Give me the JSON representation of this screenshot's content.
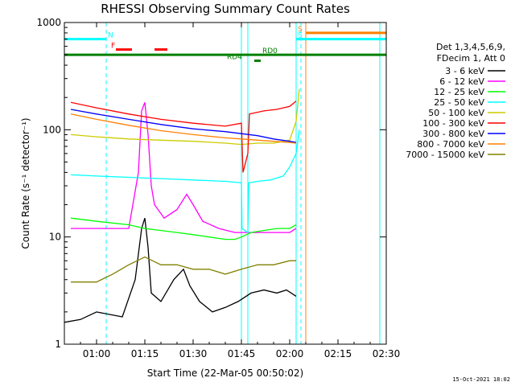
{
  "chart_data": {
    "type": "line",
    "title": "RHESSI Observing Summary Count Rates",
    "xlabel": "Start Time (22-Mar-05 00:50:02)",
    "ylabel": "Count Rate (s⁻¹ detector⁻¹)",
    "yscale": "log",
    "ylim": [
      1,
      1000
    ],
    "xlim_minutes_after_0050": [
      0,
      100
    ],
    "x_ticks": [
      "01:00",
      "01:15",
      "01:30",
      "01:45",
      "02:00",
      "02:15",
      "02:30"
    ],
    "x_tick_minutes": [
      10,
      25,
      40,
      55,
      70,
      85,
      100
    ],
    "y_ticks": [
      "1",
      "10",
      "100",
      "1000"
    ],
    "y_tick_values": [
      1,
      10,
      100,
      1000
    ],
    "legend_header": [
      "Det 1,3,4,5,6,9,",
      "FDecim 1, Att 0"
    ],
    "legend_position": "right",
    "series": [
      {
        "name": "3 - 6 keV",
        "color": "#000000",
        "points": [
          [
            0,
            1.6
          ],
          [
            5,
            1.7
          ],
          [
            10,
            2.0
          ],
          [
            18,
            1.8
          ],
          [
            22,
            4.0
          ],
          [
            24,
            12
          ],
          [
            25,
            15
          ],
          [
            26,
            8
          ],
          [
            27,
            3.0
          ],
          [
            30,
            2.5
          ],
          [
            34,
            4.0
          ],
          [
            37,
            5.0
          ],
          [
            39,
            3.5
          ],
          [
            42,
            2.5
          ],
          [
            46,
            2.0
          ],
          [
            50,
            2.2
          ],
          [
            54,
            2.5
          ],
          [
            58,
            3.0
          ],
          [
            62,
            3.2
          ],
          [
            66,
            3.0
          ],
          [
            69,
            3.2
          ],
          [
            72,
            2.8
          ]
        ]
      },
      {
        "name": "6 - 12 keV",
        "color": "#ff00ff",
        "points": [
          [
            2,
            12
          ],
          [
            10,
            12
          ],
          [
            20,
            12
          ],
          [
            23,
            40
          ],
          [
            24,
            150
          ],
          [
            25,
            180
          ],
          [
            26,
            90
          ],
          [
            27,
            30
          ],
          [
            28,
            20
          ],
          [
            31,
            15
          ],
          [
            35,
            18
          ],
          [
            38,
            25
          ],
          [
            40,
            20
          ],
          [
            43,
            14
          ],
          [
            48,
            12
          ],
          [
            53,
            11
          ],
          [
            56,
            11
          ],
          [
            58,
            11
          ],
          [
            62,
            11
          ],
          [
            66,
            11
          ],
          [
            70,
            11
          ],
          [
            72,
            12
          ]
        ]
      },
      {
        "name": "12 - 25 keV",
        "color": "#00ff00",
        "points": [
          [
            2,
            15
          ],
          [
            10,
            14
          ],
          [
            20,
            13
          ],
          [
            25,
            12
          ],
          [
            30,
            11.5
          ],
          [
            35,
            11
          ],
          [
            40,
            10.5
          ],
          [
            45,
            10
          ],
          [
            50,
            9.5
          ],
          [
            53,
            9.5
          ],
          [
            55,
            10
          ],
          [
            58,
            11
          ],
          [
            62,
            11.5
          ],
          [
            66,
            12
          ],
          [
            70,
            12
          ],
          [
            72,
            13
          ]
        ]
      },
      {
        "name": "25 - 50 keV",
        "color": "#00ffff",
        "points": [
          [
            2,
            38
          ],
          [
            10,
            37
          ],
          [
            20,
            36
          ],
          [
            30,
            35
          ],
          [
            40,
            34
          ],
          [
            50,
            33
          ],
          [
            55,
            32
          ],
          [
            55.2,
            12
          ],
          [
            57,
            11
          ],
          [
            57.3,
            32
          ],
          [
            60,
            33
          ],
          [
            64,
            34
          ],
          [
            68,
            37
          ],
          [
            70,
            45
          ],
          [
            72,
            60
          ],
          [
            73,
            100
          ]
        ]
      },
      {
        "name": "50 - 100 keV",
        "color": "#cccc00",
        "points": [
          [
            2,
            90
          ],
          [
            10,
            86
          ],
          [
            20,
            82
          ],
          [
            30,
            80
          ],
          [
            40,
            78
          ],
          [
            50,
            75
          ],
          [
            55,
            73
          ],
          [
            60,
            75
          ],
          [
            65,
            75
          ],
          [
            70,
            80
          ],
          [
            72,
            120
          ],
          [
            73,
            240
          ]
        ]
      },
      {
        "name": "100 - 300 keV",
        "color": "#ff0000",
        "points": [
          [
            2,
            180
          ],
          [
            10,
            160
          ],
          [
            20,
            140
          ],
          [
            30,
            125
          ],
          [
            40,
            115
          ],
          [
            50,
            108
          ],
          [
            55,
            115
          ],
          [
            55.5,
            40
          ],
          [
            57,
            60
          ],
          [
            57.5,
            140
          ],
          [
            62,
            150
          ],
          [
            66,
            155
          ],
          [
            70,
            165
          ],
          [
            72,
            185
          ]
        ]
      },
      {
        "name": "300 - 800 keV",
        "color": "#0000ff",
        "points": [
          [
            2,
            155
          ],
          [
            10,
            140
          ],
          [
            20,
            125
          ],
          [
            30,
            112
          ],
          [
            40,
            102
          ],
          [
            50,
            96
          ],
          [
            55,
            92
          ],
          [
            60,
            88
          ],
          [
            65,
            82
          ],
          [
            70,
            78
          ],
          [
            72,
            76
          ]
        ]
      },
      {
        "name": "800 - 7000 keV",
        "color": "#ff8000",
        "points": [
          [
            2,
            140
          ],
          [
            10,
            125
          ],
          [
            20,
            110
          ],
          [
            30,
            98
          ],
          [
            40,
            90
          ],
          [
            50,
            84
          ],
          [
            55,
            82
          ],
          [
            60,
            80
          ],
          [
            65,
            78
          ],
          [
            70,
            76
          ],
          [
            72,
            75
          ]
        ]
      },
      {
        "name": "7000 - 15000 keV",
        "color": "#808000",
        "points": [
          [
            2,
            3.8
          ],
          [
            10,
            3.8
          ],
          [
            15,
            4.5
          ],
          [
            20,
            5.5
          ],
          [
            25,
            6.5
          ],
          [
            30,
            5.5
          ],
          [
            35,
            5.5
          ],
          [
            40,
            5.0
          ],
          [
            45,
            5.0
          ],
          [
            50,
            4.5
          ],
          [
            55,
            5.0
          ],
          [
            60,
            5.5
          ],
          [
            65,
            5.5
          ],
          [
            70,
            6.0
          ],
          [
            72,
            6.0
          ]
        ]
      }
    ],
    "state_bars": [
      {
        "label": "N",
        "color": "#00ffff",
        "level": 700,
        "segments": [
          [
            0,
            13
          ]
        ],
        "label_at": 13
      },
      {
        "label": "S",
        "color": "#00ffff",
        "level": 700,
        "segments": [
          [
            72,
            100
          ]
        ],
        "label_at": 72
      },
      {
        "label": "S",
        "color": "#ff8000",
        "level": 800,
        "segments": [
          [
            75,
            100
          ]
        ],
        "label_at": 72
      },
      {
        "label": "F",
        "color": "#ff0000",
        "level": 560,
        "segments": [
          [
            16,
            21
          ],
          [
            28,
            32
          ]
        ],
        "label_at": 14
      },
      {
        "label": "RD0",
        "color": "#008000",
        "level": 500,
        "segments": [
          [
            0,
            100
          ]
        ],
        "label_at": 61
      },
      {
        "label": "RD4",
        "color": "#008000",
        "level": 440,
        "segments": [
          [
            59,
            61
          ]
        ],
        "label_at": 50
      }
    ],
    "vertical_lines": [
      {
        "x": 13,
        "color": "#00ffff",
        "style": "dashed"
      },
      {
        "x": 55,
        "color": "#00ffff",
        "style": "solid"
      },
      {
        "x": 57,
        "color": "#00ffff",
        "style": "solid"
      },
      {
        "x": 72,
        "color": "#00ffff",
        "style": "solid"
      },
      {
        "x": 73.5,
        "color": "#00ffff",
        "style": "dashed"
      },
      {
        "x": 75,
        "color": "#ff8000",
        "style": "solid"
      },
      {
        "x": 98,
        "color": "#00ffff",
        "style": "solid"
      }
    ]
  },
  "timestamp": "15-Oct-2021 18:02"
}
